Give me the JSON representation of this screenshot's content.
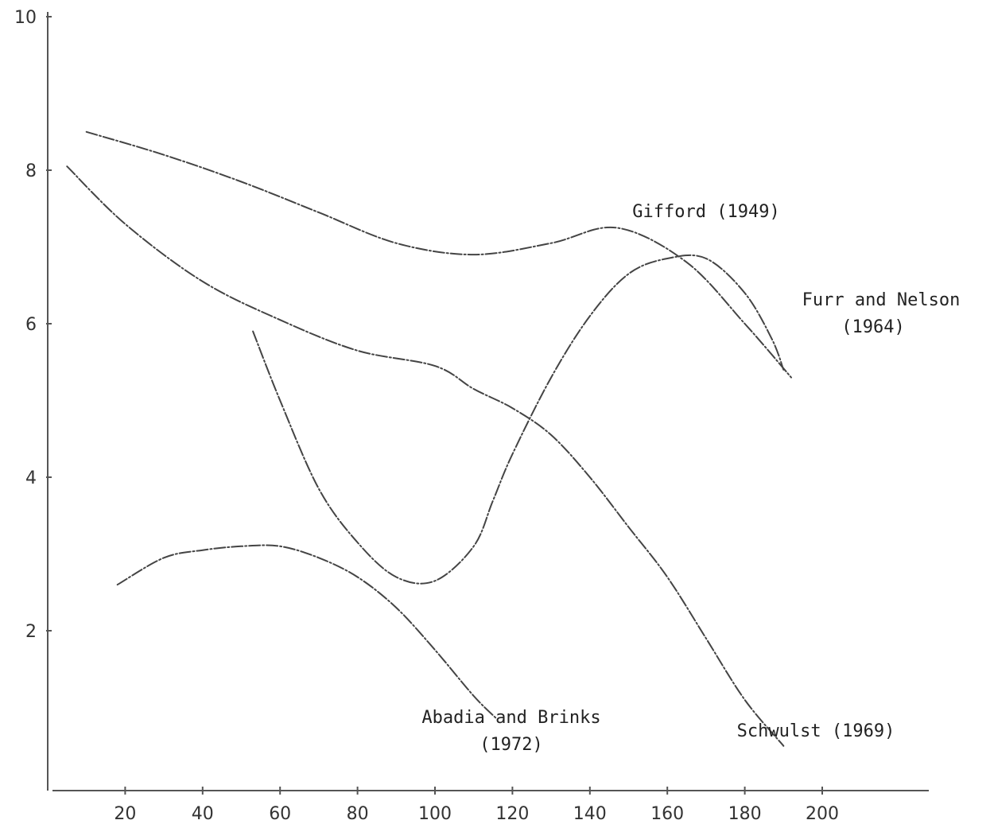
{
  "chart_data": {
    "type": "line",
    "title": "",
    "xlabel": "",
    "ylabel": "",
    "xlim": [
      0,
      220
    ],
    "ylim": [
      0,
      10
    ],
    "x_ticks": [
      "20",
      "40",
      "60",
      "80",
      "100",
      "120",
      "140",
      "160",
      "180",
      "200"
    ],
    "y_ticks": [
      "2",
      "4",
      "6",
      "8",
      "10"
    ],
    "grid": false,
    "legend": "none; series labelled directly on the plot",
    "series": [
      {
        "name": "Gifford (1949)",
        "label_lines": [
          "Gifford (1949)"
        ],
        "x": [
          10,
          30,
          50,
          70,
          90,
          110,
          130,
          147,
          165,
          180,
          192
        ],
        "y": [
          8.5,
          8.2,
          7.85,
          7.45,
          7.05,
          6.9,
          7.05,
          7.25,
          6.8,
          6.0,
          5.3
        ]
      },
      {
        "name": "Furr and Nelson (1964)",
        "label_lines": [
          "Furr and Nelson",
          "(1964)"
        ],
        "x": [
          53,
          60,
          70,
          80,
          90,
          100,
          110,
          115,
          120,
          130,
          140,
          150,
          160,
          170,
          180,
          187,
          190
        ],
        "y": [
          5.9,
          5.0,
          3.85,
          3.15,
          2.7,
          2.65,
          3.1,
          3.7,
          4.3,
          5.3,
          6.1,
          6.65,
          6.85,
          6.85,
          6.4,
          5.8,
          5.4
        ]
      },
      {
        "name": "Schwulst (1969)",
        "label_lines": [
          "Schwulst (1969)"
        ],
        "x": [
          5,
          20,
          40,
          60,
          80,
          100,
          110,
          120,
          130,
          140,
          150,
          160,
          170,
          180,
          190
        ],
        "y": [
          8.05,
          7.3,
          6.55,
          6.05,
          5.65,
          5.45,
          5.15,
          4.9,
          4.55,
          4.0,
          3.35,
          2.7,
          1.9,
          1.1,
          0.5
        ]
      },
      {
        "name": "Abadia and Brinks (1972)",
        "label_lines": [
          "Abadia and Brinks",
          "(1972)"
        ],
        "x": [
          18,
          30,
          40,
          50,
          60,
          70,
          80,
          90,
          100,
          110,
          116
        ],
        "y": [
          2.6,
          2.95,
          3.05,
          3.1,
          3.1,
          2.95,
          2.7,
          2.3,
          1.75,
          1.15,
          0.85
        ]
      }
    ]
  }
}
